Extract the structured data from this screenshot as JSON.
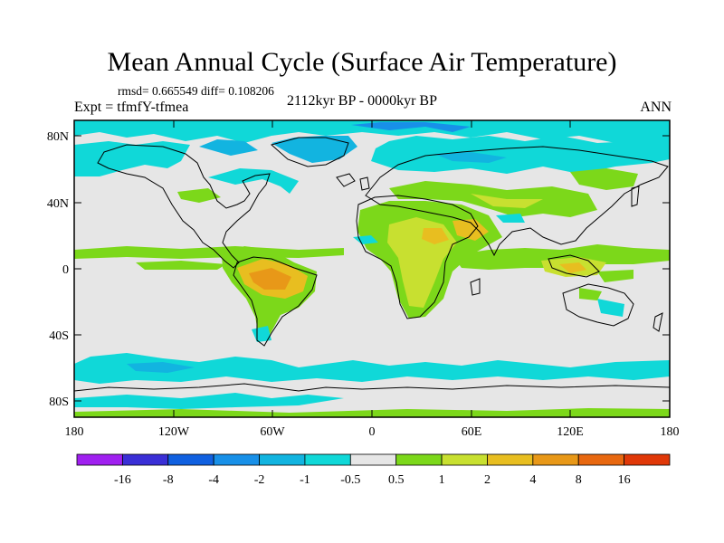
{
  "title": "Mean Annual Cycle (Surface Air Temperature)",
  "stats": "rmsd= 0.665549 diff= 0.108206",
  "experiment": "Expt = tfmfY-tfmea",
  "period": "2112kyr BP - 0000kyr BP",
  "season": "ANN",
  "y_axis_labels": [
    "80N",
    "40N",
    "0",
    "40S",
    "80S"
  ],
  "x_axis_labels": [
    "180",
    "120W",
    "60W",
    "0",
    "60E",
    "120E",
    "180"
  ],
  "colorbar": {
    "labels": [
      "-16",
      "-8",
      "-4",
      "-2",
      "-1",
      "-0.5",
      "0.5",
      "1",
      "2",
      "4",
      "8",
      "16"
    ],
    "colors": [
      "#a020f0",
      "#3a2fd6",
      "#1060e0",
      "#1890e8",
      "#12b4e0",
      "#10d8d8",
      "#e6e6e6",
      "#7cd81a",
      "#c8e030",
      "#e8be20",
      "#e89818",
      "#e86810",
      "#e03808"
    ]
  },
  "palette": {
    "ocean_neutral": "#e6e6e6",
    "coastline": "#000000",
    "cool_light": "#10d8d8",
    "cool_mid": "#12b4e0",
    "cool_deep": "#1890e8",
    "warm_light": "#7cd81a",
    "warm_mid": "#c8e030",
    "warm_high": "#e8be20",
    "warm_peak": "#e89818"
  }
}
